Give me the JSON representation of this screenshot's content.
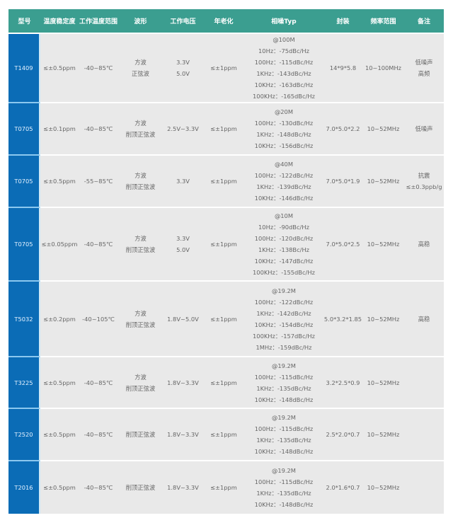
{
  "headers": [
    "型号",
    "温度稳定度",
    "工作温度范围",
    "波形",
    "工作电压",
    "年老化",
    "相噪Typ",
    "封装",
    "频率范围",
    "备注"
  ],
  "rows": [
    {
      "model": "T1409",
      "stability": "≤±0.5ppm",
      "temp_range": "-40~85℃",
      "waveform": [
        "方波",
        "正弦波"
      ],
      "voltage": [
        "3.3V",
        "5.0V"
      ],
      "aging": "≤±1ppm",
      "phase_noise": [
        "@100M",
        "10Hz：-75dBc/Hz",
        "100Hz：-115dBc/Hz",
        "1KHz：-143dBc/Hz",
        "10KHz：-163dBc/Hz",
        "100KHz：-165dBc/Hz"
      ],
      "package": "14*9*5.8",
      "freq": "10~100MHz",
      "notes": [
        "低噪声",
        "高频"
      ]
    },
    {
      "model": "T0705",
      "stability": "≤±0.1ppm",
      "temp_range": "-40~85℃",
      "waveform": [
        "方波",
        "削顶正弦波"
      ],
      "voltage": [
        "2.5V~3.3V"
      ],
      "aging": "≤±1ppm",
      "phase_noise": [
        "@20M",
        "100Hz：-130dBc/Hz",
        "1KHz：-148dBc/Hz",
        "10KHz：-156dBc/Hz"
      ],
      "package": "7.0*5.0*2.2",
      "freq": "10~52MHz",
      "notes": [
        "低噪声"
      ]
    },
    {
      "model": "T0705",
      "stability": "≤±0.5ppm",
      "temp_range": "-55~85℃",
      "waveform": [
        "方波",
        "削顶正弦波"
      ],
      "voltage": [
        "3.3V"
      ],
      "aging": "≤±1ppm",
      "phase_noise": [
        "@40M",
        "100Hz：-122dBc/Hz",
        "1KHz：-139dBc/Hz",
        "10KHz：-146dBc/Hz"
      ],
      "package": "7.0*5.0*1.9",
      "freq": "10~52MHz",
      "notes": [
        "抗震",
        "≤±0.3ppb/g"
      ]
    },
    {
      "model": "T0705",
      "stability": "≤±0.05ppm",
      "temp_range": "-40~85℃",
      "waveform": [
        "方波",
        "削顶正弦波"
      ],
      "voltage": [
        "3.3V",
        "5.0V"
      ],
      "aging": "≤±1ppm",
      "phase_noise": [
        "@10M",
        "10Hz：-90dBc/Hz",
        "100Hz：-120dBc/Hz",
        "1KHz：-138Bc/Hz",
        "10KHz：-147dBc/Hz",
        "100KHz：-155dBc/Hz"
      ],
      "package": "7.0*5.0*2.5",
      "freq": "10~52MHz",
      "notes": [
        "高稳"
      ]
    },
    {
      "model": "T5032",
      "stability": "≤±0.2ppm",
      "temp_range": "-40~105℃",
      "waveform": [
        "方波",
        "削顶正弦波"
      ],
      "voltage": [
        "1.8V~5.0V"
      ],
      "aging": "≤±1ppm",
      "phase_noise": [
        "@19.2M",
        "100Hz：-122dBc/Hz",
        "1KHz：-142dBc/Hz",
        "10KHz：-154dBc/Hz",
        "100KHz：-157dBc/Hz",
        "1MHz：-159dBc/Hz"
      ],
      "package": "5.0*3.2*1.85",
      "freq": "10~52MHz",
      "notes": [
        "高稳"
      ]
    },
    {
      "model": "T3225",
      "stability": "≤±0.5ppm",
      "temp_range": "-40~85℃",
      "waveform": [
        "方波",
        "削顶正弦波"
      ],
      "voltage": [
        "1.8V~3.3V"
      ],
      "aging": "≤±1ppm",
      "phase_noise": [
        "@19.2M",
        "100Hz：-115dBc/Hz",
        "1KHz：-135dBc/Hz",
        "10KHz：-148dBc/Hz"
      ],
      "package": "3.2*2.5*0.9",
      "freq": "10~52MHz",
      "notes": []
    },
    {
      "model": "T2520",
      "stability": "≤±0.5ppm",
      "temp_range": "-40~85℃",
      "waveform": [
        "削顶正弦波"
      ],
      "voltage": [
        "1.8V~3.3V"
      ],
      "aging": "≤±1ppm",
      "phase_noise": [
        "@19.2M",
        "100Hz：-115dBc/Hz",
        "1KHz：-135dBc/Hz",
        "10KHz：-148dBc/Hz"
      ],
      "package": "2.5*2.0*0.7",
      "freq": "10~52MHz",
      "notes": []
    },
    {
      "model": "T2016",
      "stability": "≤±0.5ppm",
      "temp_range": "-40~85℃",
      "waveform": [
        "削顶正弦波"
      ],
      "voltage": [
        "1.8V~3.3V"
      ],
      "aging": "≤±1ppm",
      "phase_noise": [
        "@19.2M",
        "100Hz：-115dBc/Hz",
        "1KHz：-135dBc/Hz",
        "10KHz：-148dBc/Hz"
      ],
      "package": "2.0*1.6*0.7",
      "freq": "10~52MHz",
      "notes": []
    }
  ],
  "colors": {
    "header_bg": "#3b9e90",
    "model_col_bg": "#0b6cb6",
    "cell_bg": "#e9e9e9",
    "text": "#666666"
  }
}
